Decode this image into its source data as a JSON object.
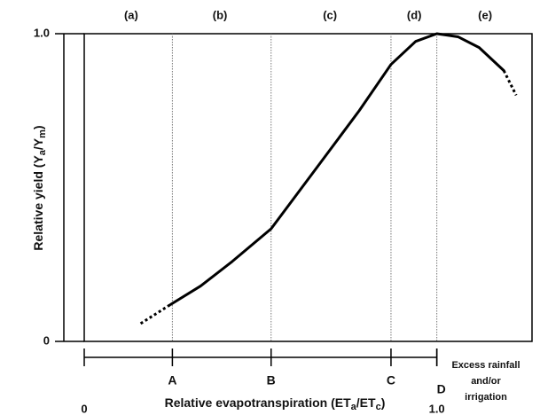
{
  "chart_data": {
    "type": "line",
    "ylabel": [
      "Relative yield (Y",
      "a",
      "/Y",
      "m",
      ")"
    ],
    "xlabel": [
      "Relative evapotranspiration (ET",
      "a",
      "/ET",
      "c",
      ")"
    ],
    "xlim": [
      0,
      1.27
    ],
    "ylim": [
      0,
      1
    ],
    "xticks": [
      0,
      {
        "value": 1,
        "label": "1.0"
      }
    ],
    "yticks": [
      0,
      {
        "value": 1,
        "label": "1.0"
      }
    ],
    "markers": [
      {
        "label": "A",
        "x": 0.25
      },
      {
        "label": "B",
        "x": 0.53
      },
      {
        "label": "C",
        "x": 0.87
      },
      {
        "label": "D",
        "x": 1.0
      }
    ],
    "regions": [
      {
        "label": "(a)",
        "x": 0.133
      },
      {
        "label": "(b)",
        "x": 0.385
      },
      {
        "label": "(c)",
        "x": 0.697
      },
      {
        "label": "(d)",
        "x": 0.936
      },
      {
        "label": "(e)",
        "x": 1.137
      }
    ],
    "annotation": [
      "Excess rainfall",
      "and/or",
      "irrigation"
    ],
    "series": [
      {
        "style": "dotted",
        "color": "#000000",
        "x": [
          0.16,
          0.245
        ],
        "values": [
          0.058,
          0.12
        ]
      },
      {
        "style": "solid",
        "color": "#000000",
        "x": [
          0.245,
          0.33,
          0.42,
          0.53,
          0.65,
          0.78,
          0.87,
          0.94,
          1.0,
          1.06,
          1.12,
          1.19
        ],
        "values": [
          0.12,
          0.18,
          0.26,
          0.366,
          0.55,
          0.75,
          0.9,
          0.975,
          1.0,
          0.99,
          0.955,
          0.88
        ]
      },
      {
        "style": "dotted",
        "color": "#000000",
        "x": [
          1.19,
          1.225
        ],
        "values": [
          0.88,
          0.8
        ]
      }
    ]
  }
}
